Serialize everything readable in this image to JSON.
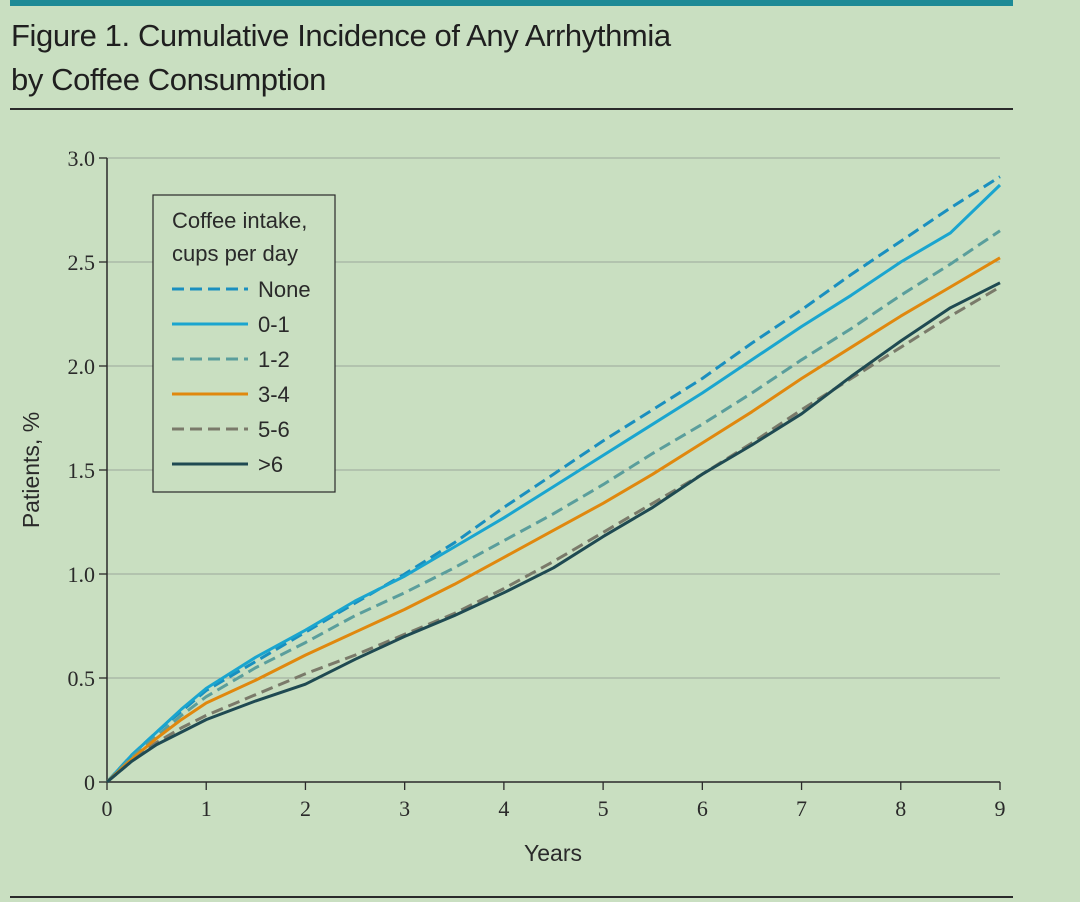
{
  "figure": {
    "title_line1": "Figure 1. Cumulative Incidence of Any Arrhythmia",
    "title_line2": "by Coffee Consumption",
    "accent_color": "#1d8a96",
    "background_color": "#c9dfc1"
  },
  "chart_data": {
    "type": "line",
    "title": "Figure 1. Cumulative Incidence of Any Arrhythmia by Coffee Consumption",
    "xlabel": "Years",
    "ylabel": "Patients, %",
    "xlim": [
      0,
      9
    ],
    "ylim": [
      0,
      3.0
    ],
    "x_ticks": [
      "0",
      "1",
      "2",
      "3",
      "4",
      "5",
      "6",
      "7",
      "8",
      "9"
    ],
    "y_ticks": [
      "0",
      "0.5",
      "1.0",
      "1.5",
      "2.0",
      "2.5",
      "3.0"
    ],
    "grid": true,
    "legend": {
      "title_line1": "Coffee intake,",
      "title_line2": "cups per day",
      "placement": "top-left"
    },
    "x": [
      0,
      0.25,
      0.5,
      0.75,
      1,
      1.5,
      2,
      2.5,
      3,
      3.5,
      4,
      4.5,
      5,
      5.5,
      6,
      6.5,
      7,
      7.5,
      8,
      8.5,
      9
    ],
    "series": [
      {
        "name": "None",
        "color": "#1a8fbf",
        "dash": "dashed",
        "values": [
          0,
          0.13,
          0.24,
          0.34,
          0.44,
          0.58,
          0.72,
          0.86,
          1.0,
          1.15,
          1.32,
          1.48,
          1.64,
          1.79,
          1.94,
          2.11,
          2.27,
          2.44,
          2.6,
          2.76,
          2.91
        ]
      },
      {
        "name": "0-1",
        "color": "#1aa5cf",
        "dash": "solid",
        "values": [
          0,
          0.13,
          0.24,
          0.35,
          0.45,
          0.6,
          0.73,
          0.87,
          0.99,
          1.13,
          1.27,
          1.42,
          1.57,
          1.72,
          1.87,
          2.03,
          2.19,
          2.34,
          2.5,
          2.64,
          2.87
        ]
      },
      {
        "name": "1-2",
        "color": "#5a9e9c",
        "dash": "dashed",
        "values": [
          0,
          0.12,
          0.22,
          0.32,
          0.41,
          0.55,
          0.67,
          0.8,
          0.91,
          1.03,
          1.16,
          1.29,
          1.43,
          1.58,
          1.72,
          1.87,
          2.03,
          2.18,
          2.34,
          2.49,
          2.65
        ]
      },
      {
        "name": "3-4",
        "color": "#e0880e",
        "dash": "solid",
        "values": [
          0,
          0.11,
          0.21,
          0.3,
          0.38,
          0.49,
          0.61,
          0.72,
          0.83,
          0.95,
          1.08,
          1.21,
          1.34,
          1.48,
          1.63,
          1.78,
          1.94,
          2.09,
          2.24,
          2.38,
          2.52
        ]
      },
      {
        "name": "5-6",
        "color": "#7a7a6a",
        "dash": "dashed",
        "values": [
          0,
          0.1,
          0.19,
          0.26,
          0.32,
          0.42,
          0.52,
          0.61,
          0.71,
          0.81,
          0.93,
          1.06,
          1.2,
          1.34,
          1.48,
          1.63,
          1.79,
          1.94,
          2.09,
          2.24,
          2.38
        ]
      },
      {
        "name": ">6",
        "color": "#1f4a52",
        "dash": "solid",
        "values": [
          0,
          0.1,
          0.18,
          0.24,
          0.3,
          0.39,
          0.47,
          0.59,
          0.7,
          0.8,
          0.91,
          1.03,
          1.18,
          1.32,
          1.48,
          1.62,
          1.77,
          1.95,
          2.12,
          2.28,
          2.4
        ]
      }
    ]
  }
}
